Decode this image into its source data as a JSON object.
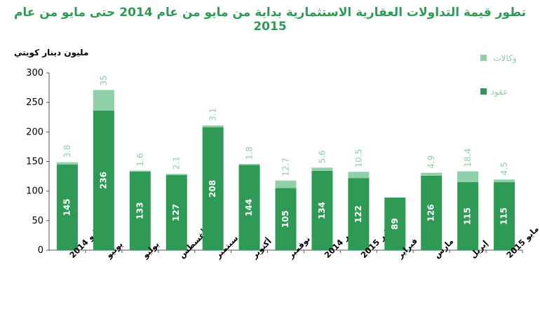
{
  "chart_data": {
    "type": "bar",
    "stacked": true,
    "title": "تطور قيمة التداولات العقارية الاستثمارية بداية من مايو من عام 2014 حتى مايو من عام  2015",
    "ylabel": "مليون دينار كويتي",
    "ylim": [
      0,
      300
    ],
    "yticks": [
      0,
      50,
      100,
      150,
      200,
      250,
      300
    ],
    "categories": [
      "مايو 2014",
      "يونيو",
      "يوليو",
      "أغسطس",
      "سبتمبر",
      "أكتوبر",
      "نوفمبر",
      "ديسمبر 2014",
      "يناير 2015",
      "فبراير",
      "مارس",
      "إبريل",
      "مايو 2015"
    ],
    "series": [
      {
        "name": "عقود",
        "color": "#2e9a55",
        "values": [
          145,
          236,
          133,
          127,
          208,
          144,
          105,
          134,
          122,
          89,
          126,
          115,
          115
        ]
      },
      {
        "name": "وكالات",
        "color": "#8fd0a8",
        "values": [
          3.8,
          35,
          1.6,
          2.1,
          3.1,
          1.8,
          12.7,
          5.6,
          10.5,
          0,
          4.9,
          18.4,
          4.5
        ]
      }
    ],
    "value_labels": {
      "contracts": [
        "145",
        "236",
        "133",
        "127",
        "208",
        "144",
        "105",
        "134",
        "122",
        "89",
        "126",
        "115",
        "115"
      ],
      "agencies": [
        "3.8",
        "35",
        "1.6",
        "2.1",
        "3.1",
        "1.8",
        "12.7",
        "5.6",
        "10.5",
        "",
        "4.9",
        "18.4",
        "4.5"
      ]
    },
    "legend": {
      "position": "right",
      "items": [
        "وكالات",
        "عقود"
      ]
    },
    "grid": false
  }
}
